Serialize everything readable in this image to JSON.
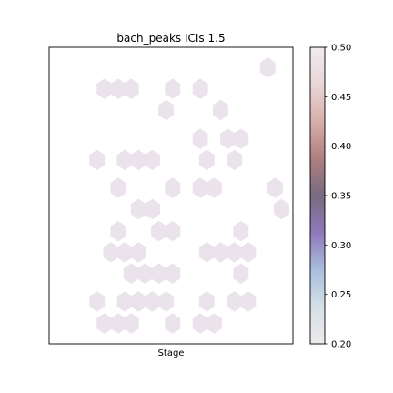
{
  "chart_data": {
    "type": "heatmap",
    "subtype": "hexbin",
    "title": "bach_peaks ICIs 1.5",
    "xlabel": "Stage",
    "ylabel": "",
    "x_ticks_visible": false,
    "y_ticks_visible": false,
    "grid": false,
    "xlim": [
      0,
      30
    ],
    "ylim": [
      0,
      35
    ],
    "hex_fill": "#ebe3eb",
    "hex_value": 0.2,
    "colorbar": {
      "min": 0.2,
      "max": 0.5,
      "ticks": [
        "0.20",
        "0.25",
        "0.30",
        "0.35",
        "0.40",
        "0.45",
        "0.50"
      ],
      "tick_values": [
        0.2,
        0.25,
        0.3,
        0.35,
        0.4,
        0.45,
        0.5
      ],
      "colors": [
        "#eeeaed",
        "#d4e0e6",
        "#a9bedd",
        "#9078bb",
        "#776b7f",
        "#b07f80",
        "#d7aeaa",
        "#e8d7d7",
        "#f1eaef"
      ]
    },
    "cells": [
      {
        "x": 26.9,
        "y": 32.6
      },
      {
        "x": 6.8,
        "y": 30.1
      },
      {
        "x": 8.5,
        "y": 30.1
      },
      {
        "x": 10.1,
        "y": 30.1
      },
      {
        "x": 15.2,
        "y": 30.1
      },
      {
        "x": 18.6,
        "y": 30.1
      },
      {
        "x": 14.4,
        "y": 27.6
      },
      {
        "x": 21.1,
        "y": 27.6
      },
      {
        "x": 18.6,
        "y": 24.2
      },
      {
        "x": 22.0,
        "y": 24.2
      },
      {
        "x": 23.6,
        "y": 24.2
      },
      {
        "x": 5.9,
        "y": 21.7
      },
      {
        "x": 9.3,
        "y": 21.7
      },
      {
        "x": 11.0,
        "y": 21.7
      },
      {
        "x": 12.7,
        "y": 21.7
      },
      {
        "x": 19.4,
        "y": 21.7
      },
      {
        "x": 22.8,
        "y": 21.7
      },
      {
        "x": 8.5,
        "y": 18.4
      },
      {
        "x": 15.2,
        "y": 18.4
      },
      {
        "x": 18.6,
        "y": 18.4
      },
      {
        "x": 20.3,
        "y": 18.4
      },
      {
        "x": 27.8,
        "y": 18.4
      },
      {
        "x": 11.0,
        "y": 15.9
      },
      {
        "x": 12.7,
        "y": 15.9
      },
      {
        "x": 28.6,
        "y": 15.9
      },
      {
        "x": 8.5,
        "y": 13.3
      },
      {
        "x": 13.5,
        "y": 13.3
      },
      {
        "x": 15.2,
        "y": 13.3
      },
      {
        "x": 23.6,
        "y": 13.3
      },
      {
        "x": 7.6,
        "y": 10.8
      },
      {
        "x": 9.3,
        "y": 10.8
      },
      {
        "x": 11.0,
        "y": 10.8
      },
      {
        "x": 19.4,
        "y": 10.8
      },
      {
        "x": 21.1,
        "y": 10.8
      },
      {
        "x": 22.8,
        "y": 10.8
      },
      {
        "x": 24.5,
        "y": 10.8
      },
      {
        "x": 10.1,
        "y": 8.3
      },
      {
        "x": 11.8,
        "y": 8.3
      },
      {
        "x": 13.5,
        "y": 8.3
      },
      {
        "x": 15.2,
        "y": 8.3
      },
      {
        "x": 23.6,
        "y": 8.3
      },
      {
        "x": 5.9,
        "y": 5.0
      },
      {
        "x": 9.3,
        "y": 5.0
      },
      {
        "x": 11.0,
        "y": 5.0
      },
      {
        "x": 12.7,
        "y": 5.0
      },
      {
        "x": 14.4,
        "y": 5.0
      },
      {
        "x": 19.4,
        "y": 5.0
      },
      {
        "x": 22.8,
        "y": 5.0
      },
      {
        "x": 24.5,
        "y": 5.0
      },
      {
        "x": 6.8,
        "y": 2.4
      },
      {
        "x": 8.5,
        "y": 2.4
      },
      {
        "x": 10.1,
        "y": 2.4
      },
      {
        "x": 15.2,
        "y": 2.4
      },
      {
        "x": 18.6,
        "y": 2.4
      },
      {
        "x": 20.3,
        "y": 2.4
      }
    ]
  }
}
